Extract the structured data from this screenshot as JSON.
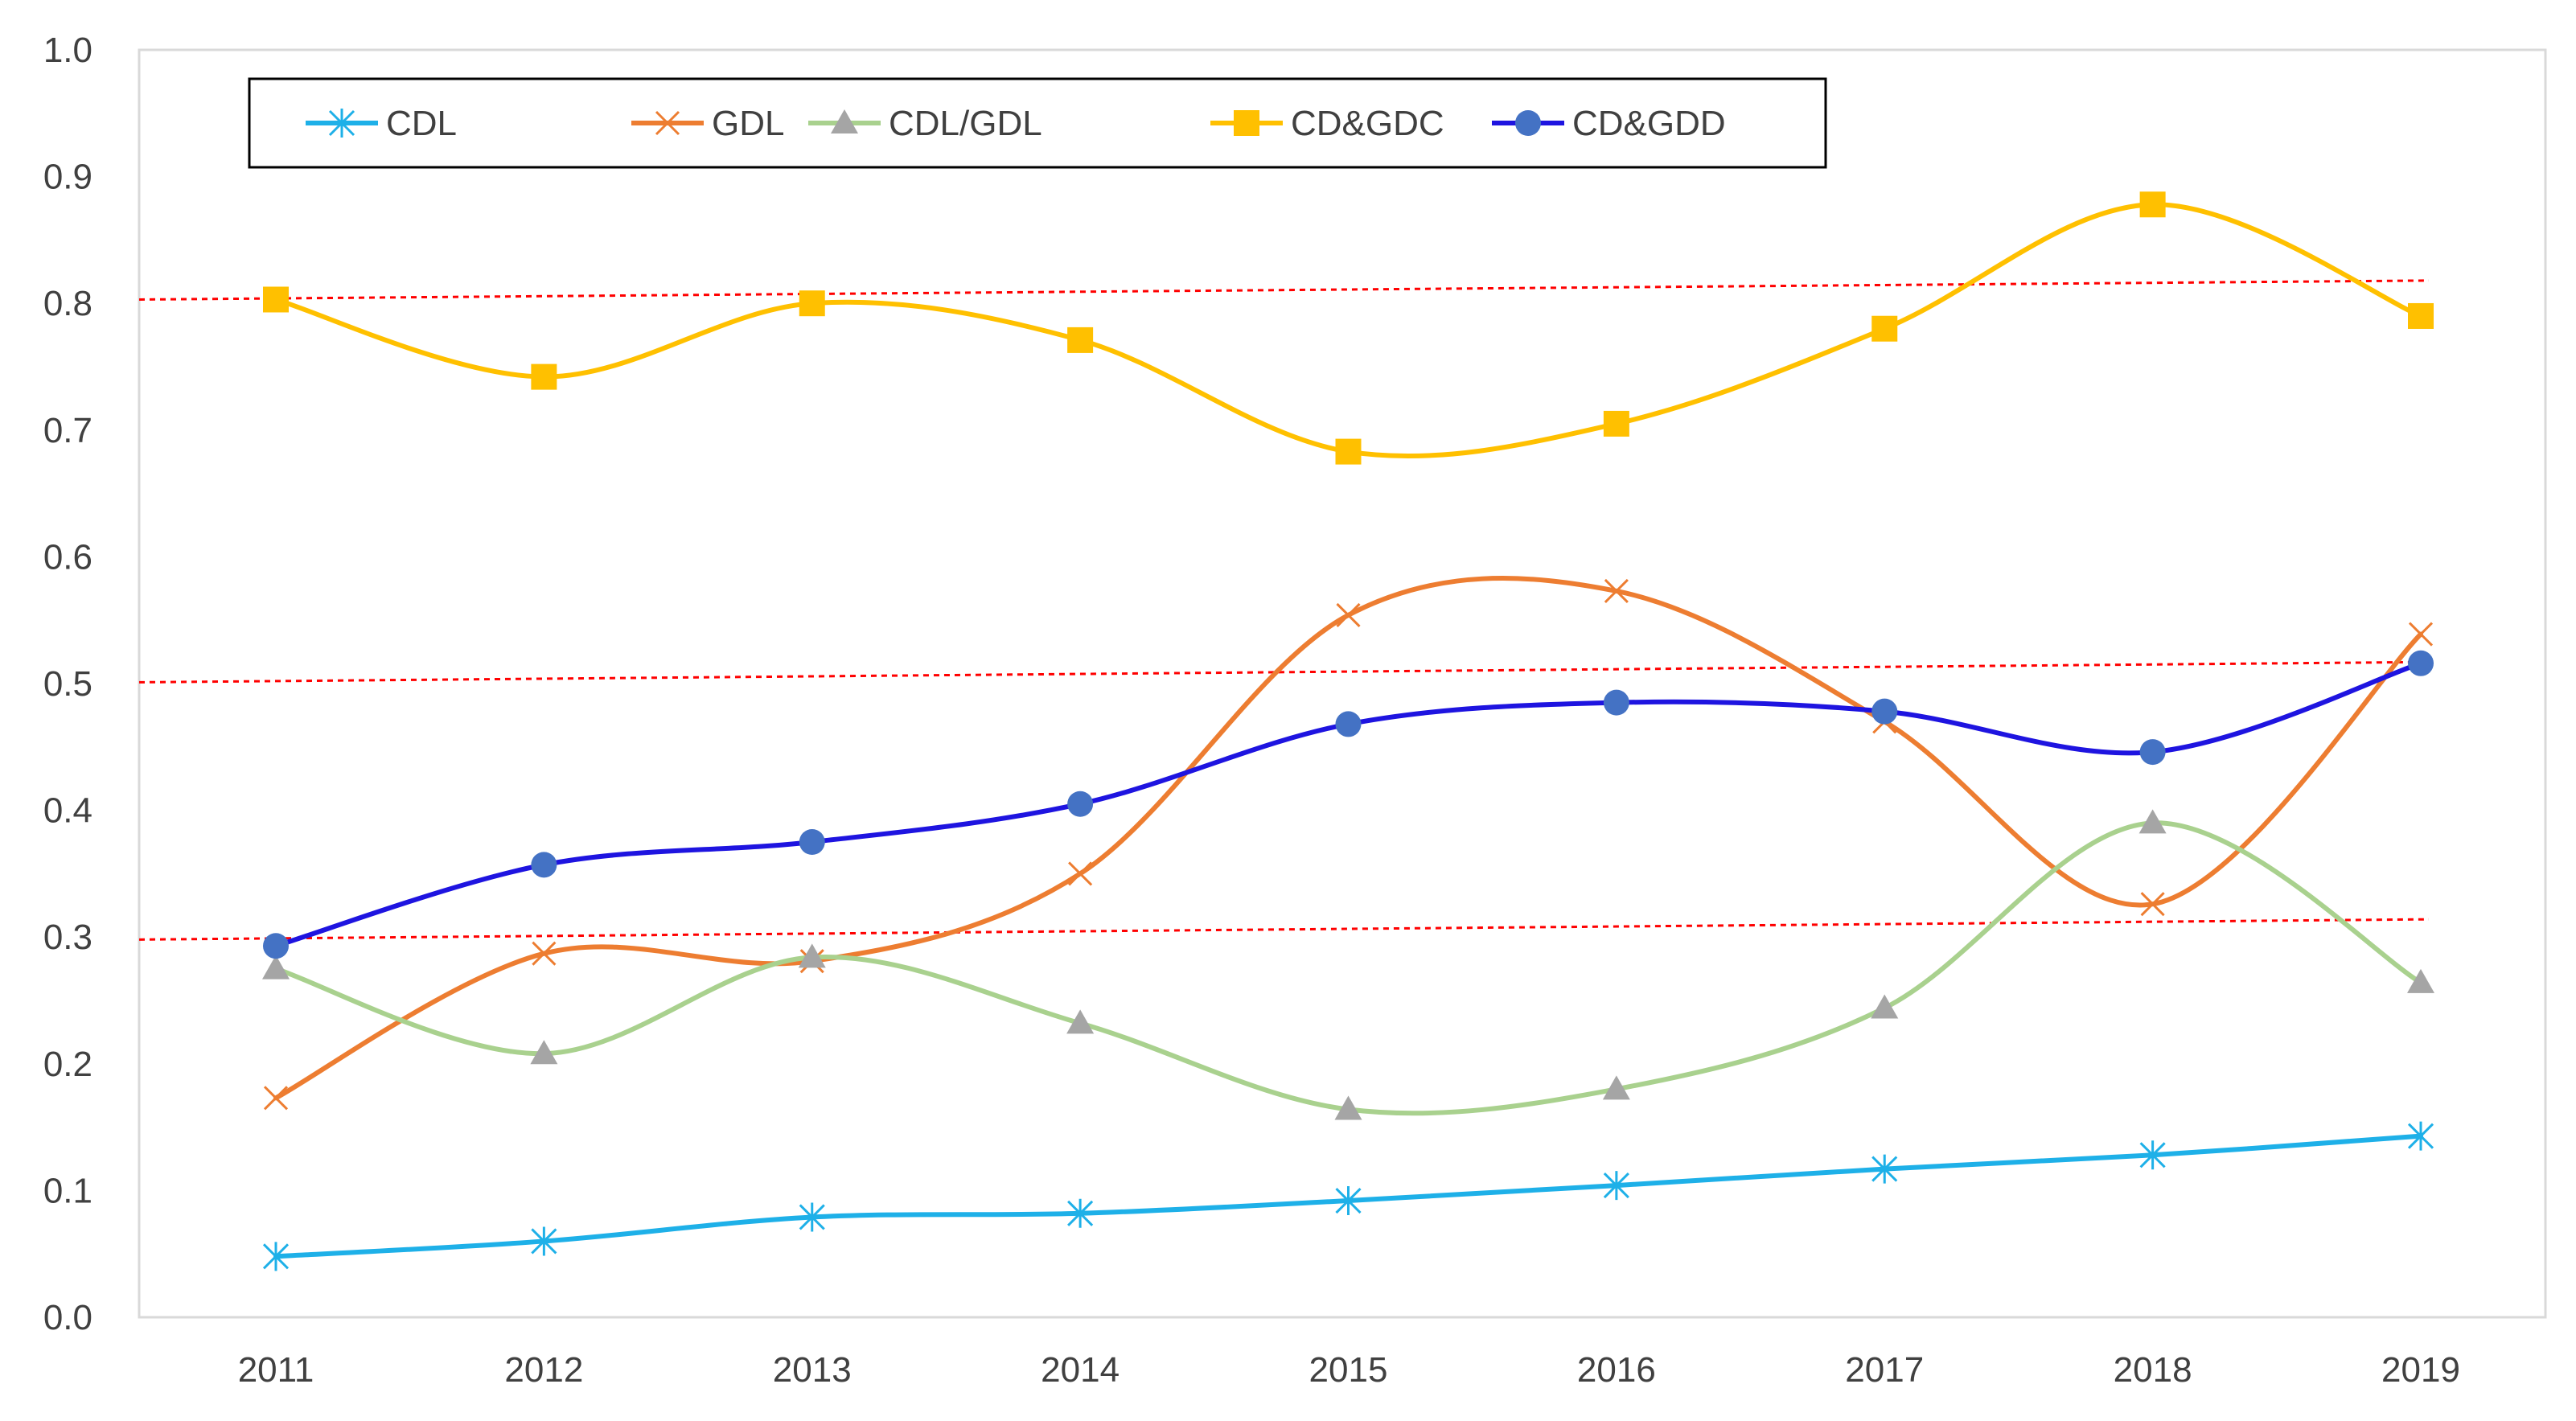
{
  "chart_data": {
    "type": "line",
    "title": "",
    "xlabel": "",
    "ylabel": "",
    "categories": [
      "2011",
      "2012",
      "2013",
      "2014",
      "2015",
      "2016",
      "2017",
      "2018",
      "2019"
    ],
    "ylim": [
      0.0,
      1.0
    ],
    "y_ticks": [
      "0.0",
      "0.1",
      "0.2",
      "0.3",
      "0.4",
      "0.5",
      "0.6",
      "0.7",
      "0.8",
      "0.9",
      "1.0"
    ],
    "grid": false,
    "legend_position": "top-left",
    "series": [
      {
        "name": "CDL",
        "marker": "asterisk",
        "color": "#1EB0E8",
        "values": [
          0.048,
          0.06,
          0.079,
          0.082,
          0.092,
          0.104,
          0.117,
          0.128,
          0.143
        ]
      },
      {
        "name": "GDL",
        "marker": "x",
        "color": "#ED7D31",
        "values": [
          0.173,
          0.287,
          0.281,
          0.35,
          0.554,
          0.573,
          0.47,
          0.326,
          0.539
        ]
      },
      {
        "name": "CDL/GDL",
        "marker": "triangle",
        "color": "#A9D18E",
        "marker_color": "#A5A5A5",
        "values": [
          0.275,
          0.208,
          0.284,
          0.232,
          0.164,
          0.18,
          0.244,
          0.39,
          0.264
        ]
      },
      {
        "name": "CD&GDC",
        "marker": "square",
        "color": "#FFC000",
        "values": [
          0.803,
          0.742,
          0.8,
          0.771,
          0.683,
          0.705,
          0.78,
          0.878,
          0.79
        ]
      },
      {
        "name": "CD&GDD",
        "marker": "circle",
        "color": "#1E14E0",
        "marker_color": "#4472C4",
        "values": [
          0.293,
          0.357,
          0.375,
          0.405,
          0.468,
          0.485,
          0.478,
          0.446,
          0.516
        ]
      }
    ],
    "reference_lines": [
      {
        "name": "reference-line-high",
        "color": "#FF0000",
        "y_start": 0.803,
        "y_end": 0.818
      },
      {
        "name": "reference-line-mid",
        "color": "#FF0000",
        "y_start": 0.501,
        "y_end": 0.517
      },
      {
        "name": "reference-line-low",
        "color": "#FF0000",
        "y_start": 0.298,
        "y_end": 0.314
      }
    ]
  }
}
